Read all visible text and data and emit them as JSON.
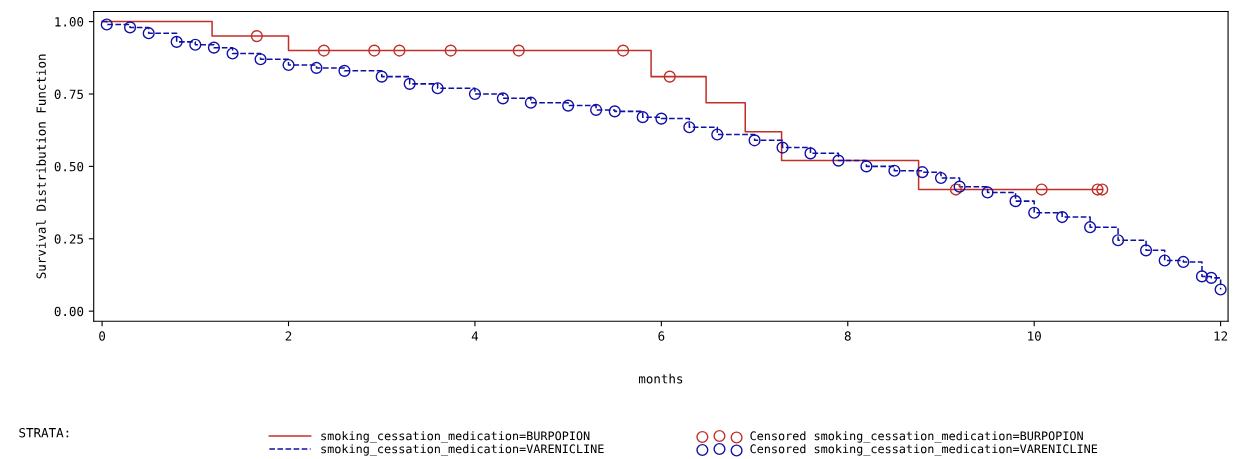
{
  "chart_data": {
    "type": "step",
    "xlabel": "months",
    "ylabel": "Survival Distribution Function",
    "legend_title": "STRATA:",
    "xlim": [
      -0.09,
      12.08
    ],
    "ylim": [
      -0.035,
      1.035
    ],
    "xticks": [
      0,
      2,
      4,
      6,
      8,
      10,
      12
    ],
    "yticks": [
      {
        "value": 0,
        "label": "0.00"
      },
      {
        "value": 0.25,
        "label": "0.25"
      },
      {
        "value": 0.5,
        "label": "0.50"
      },
      {
        "value": 0.75,
        "label": "0.75"
      },
      {
        "value": 1,
        "label": "1.00"
      }
    ],
    "grid": false,
    "legend": "bottom",
    "series": [
      {
        "name": "smoking_cessation_medication=BURPOPION",
        "color": "#c0302a",
        "line_style": "solid",
        "marker": "none",
        "x": [
          0,
          1.18,
          2.0,
          5.89,
          6.48,
          6.9,
          7.29,
          8.76,
          10.73
        ],
        "values": [
          1.0,
          0.95,
          0.9,
          0.81,
          0.72,
          0.62,
          0.52,
          0.42,
          0.42
        ]
      },
      {
        "name": "smoking_cessation_medication=VARENICLINE",
        "color": "#1010a8",
        "line_style": "dashed",
        "marker": "none",
        "x": [
          0,
          0.05,
          0.3,
          0.5,
          0.8,
          1.0,
          1.2,
          1.4,
          1.7,
          2.0,
          2.3,
          2.6,
          3.0,
          3.3,
          3.6,
          4.0,
          4.3,
          4.6,
          5.0,
          5.3,
          5.5,
          5.8,
          6.0,
          6.3,
          6.6,
          7.0,
          7.3,
          7.6,
          7.9,
          8.2,
          8.5,
          8.8,
          9.0,
          9.2,
          9.5,
          9.8,
          10.0,
          10.3,
          10.6,
          10.9,
          11.2,
          11.4,
          11.6,
          11.8,
          11.9,
          12.0
        ],
        "values": [
          1.0,
          0.99,
          0.98,
          0.96,
          0.93,
          0.92,
          0.91,
          0.89,
          0.87,
          0.85,
          0.84,
          0.83,
          0.81,
          0.785,
          0.77,
          0.75,
          0.735,
          0.72,
          0.71,
          0.695,
          0.69,
          0.67,
          0.665,
          0.635,
          0.61,
          0.59,
          0.565,
          0.545,
          0.52,
          0.5,
          0.485,
          0.48,
          0.46,
          0.43,
          0.41,
          0.38,
          0.34,
          0.325,
          0.29,
          0.245,
          0.21,
          0.175,
          0.17,
          0.12,
          0.115,
          0.075
        ]
      },
      {
        "name": "Censored smoking_cessation_medication=BURPOPION",
        "type": "scatter",
        "color": "#c0302a",
        "marker": "circle",
        "x": [
          1.66,
          2.38,
          2.92,
          3.19,
          3.74,
          4.47,
          5.59,
          6.09,
          9.16,
          10.08,
          10.68,
          10.73
        ],
        "values": [
          0.95,
          0.9,
          0.9,
          0.9,
          0.9,
          0.9,
          0.9,
          0.81,
          0.42,
          0.42,
          0.42,
          0.42
        ]
      },
      {
        "name": "Censored smoking_cessation_medication=VARENICLINE",
        "type": "scatter",
        "color": "#1010a8",
        "marker": "circle",
        "x": [
          0.05,
          0.3,
          0.5,
          0.8,
          1.0,
          1.2,
          1.4,
          1.7,
          2.0,
          2.3,
          2.6,
          3.0,
          3.3,
          3.6,
          4.0,
          4.3,
          4.6,
          5.0,
          5.3,
          5.5,
          5.8,
          6.0,
          6.3,
          6.6,
          7.0,
          7.3,
          7.6,
          7.9,
          8.2,
          8.5,
          8.8,
          9.0,
          9.2,
          9.5,
          9.8,
          10.0,
          10.3,
          10.6,
          10.9,
          11.2,
          11.4,
          11.6,
          11.8,
          11.9,
          12.0
        ],
        "values": [
          0.99,
          0.98,
          0.96,
          0.93,
          0.92,
          0.91,
          0.89,
          0.87,
          0.85,
          0.84,
          0.83,
          0.81,
          0.785,
          0.77,
          0.75,
          0.735,
          0.72,
          0.71,
          0.695,
          0.69,
          0.67,
          0.665,
          0.635,
          0.61,
          0.59,
          0.565,
          0.545,
          0.52,
          0.5,
          0.485,
          0.48,
          0.46,
          0.43,
          0.41,
          0.38,
          0.34,
          0.325,
          0.29,
          0.245,
          0.21,
          0.175,
          0.17,
          0.12,
          0.115,
          0.075
        ]
      }
    ]
  }
}
